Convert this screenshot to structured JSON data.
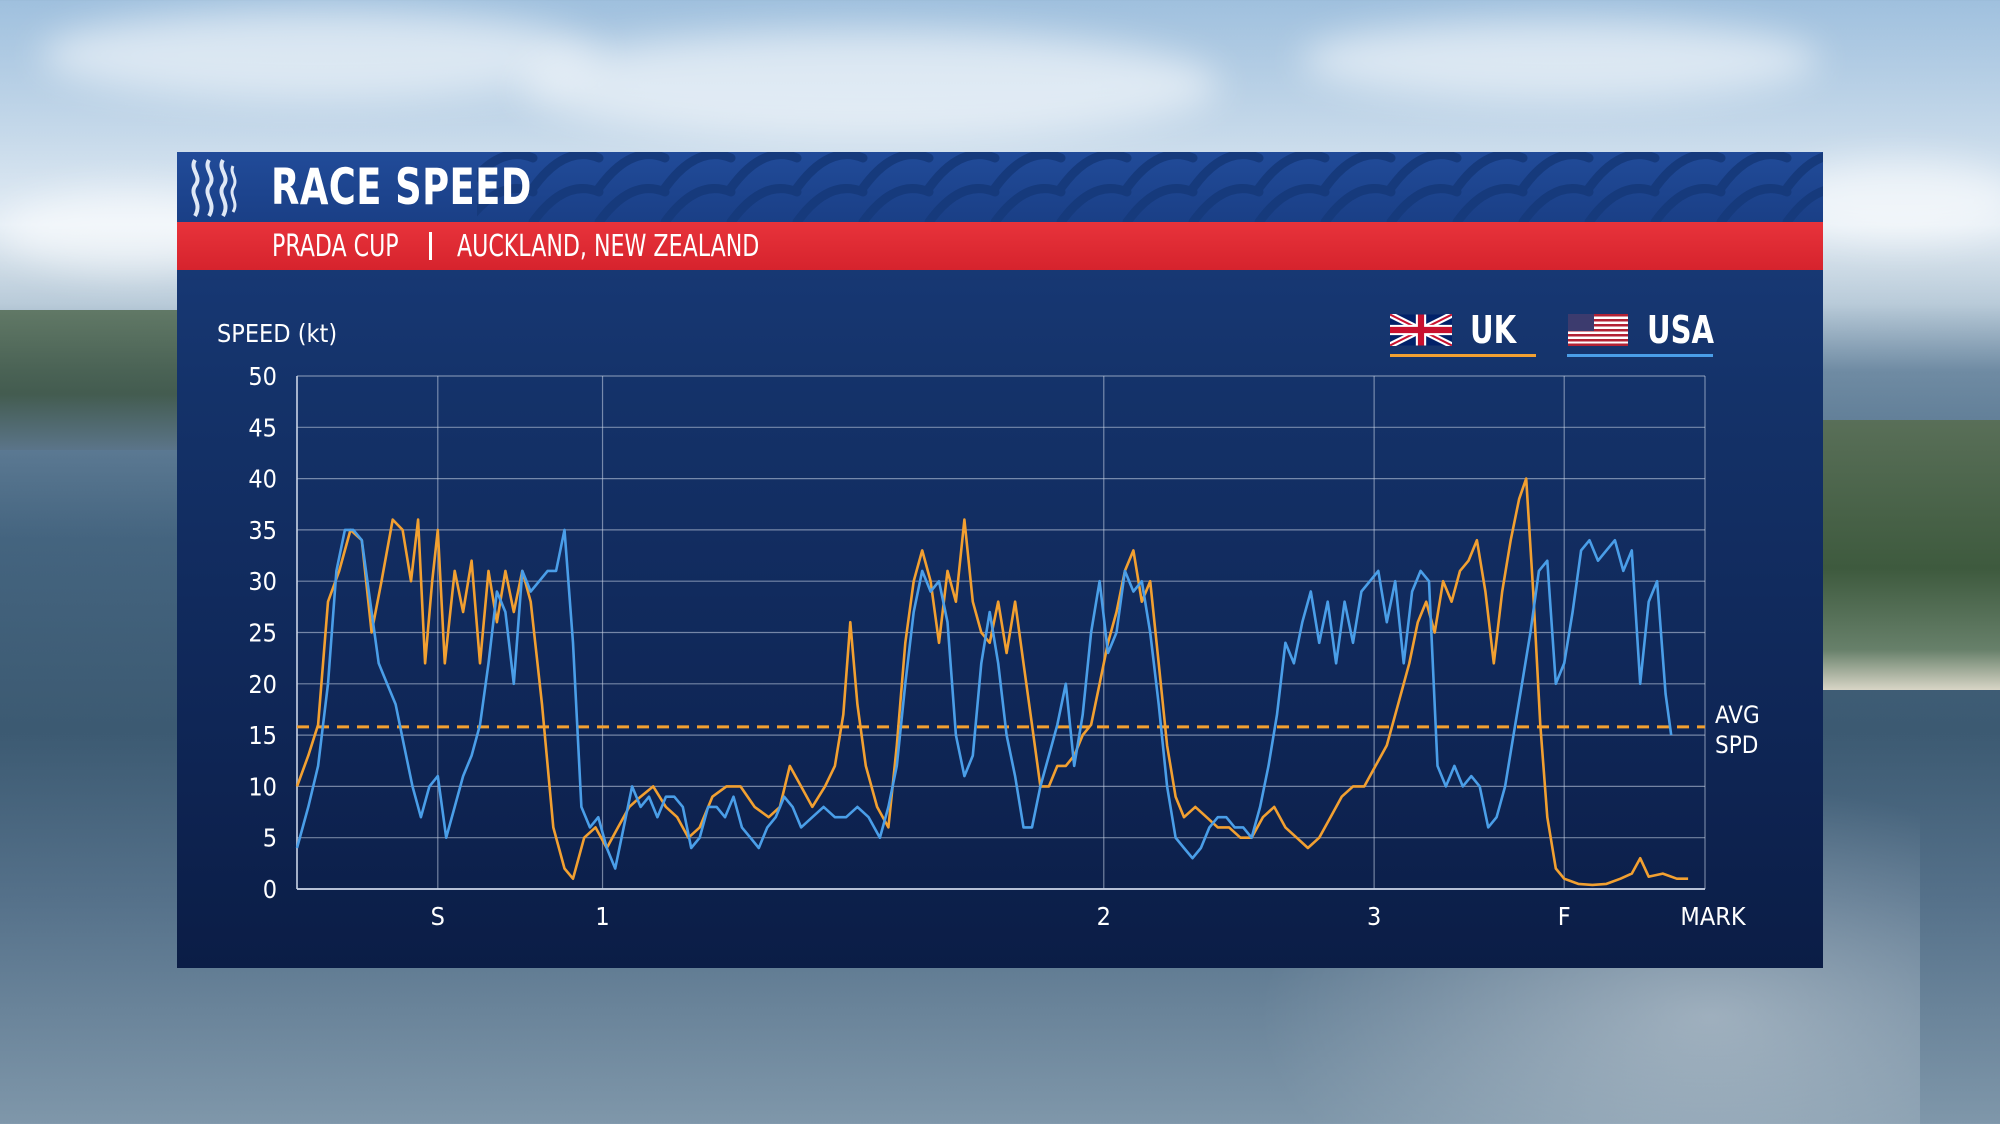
{
  "header": {
    "title": "RACE SPEED",
    "event": "PRADA CUP",
    "location": "AUCKLAND, NEW ZEALAND"
  },
  "legend": [
    {
      "label": "UK",
      "icon": "uk-flag-icon",
      "color": "#f2a031"
    },
    {
      "label": "USA",
      "icon": "usa-flag-icon",
      "color": "#4a9ee8"
    }
  ],
  "colors": {
    "uk": "#f2a031",
    "usa": "#4a9ee8",
    "grid": "#c9d3e6",
    "accent_red": "#e02b33"
  },
  "chart_data": {
    "type": "line",
    "ylabel": "SPEED (kt)",
    "ylim": [
      0,
      50
    ],
    "yticks": [
      0,
      5,
      10,
      15,
      20,
      25,
      30,
      35,
      40,
      45,
      50
    ],
    "xlabel": "MARK",
    "xlim": [
      0,
      100
    ],
    "marks": [
      {
        "label": "S",
        "x": 10
      },
      {
        "label": "1",
        "x": 21.7
      },
      {
        "label": "2",
        "x": 57.3
      },
      {
        "label": "3",
        "x": 76.5
      },
      {
        "label": "F",
        "x": 90
      },
      {
        "label": "",
        "x": 100
      }
    ],
    "avg_line": {
      "label_line1": "AVG",
      "label_line2": "SPD",
      "value": 15.8
    },
    "grid": true,
    "series": [
      {
        "name": "UK",
        "points": [
          [
            0,
            10
          ],
          [
            0.8,
            13
          ],
          [
            1.5,
            16
          ],
          [
            2.2,
            28
          ],
          [
            3,
            31
          ],
          [
            3.8,
            35
          ],
          [
            4.6,
            34
          ],
          [
            5.3,
            25
          ],
          [
            6,
            30
          ],
          [
            6.8,
            36
          ],
          [
            7.5,
            35
          ],
          [
            8.1,
            30
          ],
          [
            8.6,
            36
          ],
          [
            9.1,
            22
          ],
          [
            9.6,
            30
          ],
          [
            10,
            35
          ],
          [
            10.5,
            22
          ],
          [
            11.2,
            31
          ],
          [
            11.8,
            27
          ],
          [
            12.4,
            32
          ],
          [
            13,
            22
          ],
          [
            13.6,
            31
          ],
          [
            14.2,
            26
          ],
          [
            14.8,
            31
          ],
          [
            15.4,
            27
          ],
          [
            16,
            31
          ],
          [
            16.6,
            28
          ],
          [
            17.4,
            18
          ],
          [
            18.2,
            6
          ],
          [
            19,
            2
          ],
          [
            19.6,
            1
          ],
          [
            20.4,
            5
          ],
          [
            21.2,
            6
          ],
          [
            22,
            4
          ],
          [
            22.8,
            6
          ],
          [
            23.6,
            8
          ],
          [
            24.4,
            9
          ],
          [
            25.3,
            10
          ],
          [
            26.2,
            8
          ],
          [
            27,
            7
          ],
          [
            27.8,
            5
          ],
          [
            28.6,
            6
          ],
          [
            29.5,
            9
          ],
          [
            30.5,
            10
          ],
          [
            31.5,
            10
          ],
          [
            32.5,
            8
          ],
          [
            33.5,
            7
          ],
          [
            34.3,
            8
          ],
          [
            35,
            12
          ],
          [
            35.8,
            10
          ],
          [
            36.6,
            8
          ],
          [
            37.5,
            10
          ],
          [
            38.2,
            12
          ],
          [
            38.8,
            17
          ],
          [
            39.3,
            26
          ],
          [
            39.8,
            18
          ],
          [
            40.4,
            12
          ],
          [
            41.2,
            8
          ],
          [
            42,
            6
          ],
          [
            42.6,
            14
          ],
          [
            43.2,
            24
          ],
          [
            43.8,
            30
          ],
          [
            44.4,
            33
          ],
          [
            45,
            30
          ],
          [
            45.6,
            24
          ],
          [
            46.2,
            31
          ],
          [
            46.8,
            28
          ],
          [
            47.4,
            36
          ],
          [
            48,
            28
          ],
          [
            48.6,
            25
          ],
          [
            49.2,
            24
          ],
          [
            49.8,
            28
          ],
          [
            50.4,
            23
          ],
          [
            51,
            28
          ],
          [
            51.6,
            22
          ],
          [
            52.2,
            16
          ],
          [
            52.8,
            10
          ],
          [
            53.4,
            10
          ],
          [
            54,
            12
          ],
          [
            54.6,
            12
          ],
          [
            55.2,
            13
          ],
          [
            55.8,
            15
          ],
          [
            56.4,
            16
          ],
          [
            57,
            20
          ],
          [
            57.6,
            24
          ],
          [
            58.2,
            27
          ],
          [
            58.8,
            31
          ],
          [
            59.4,
            33
          ],
          [
            60,
            28
          ],
          [
            60.6,
            30
          ],
          [
            61.2,
            22
          ],
          [
            61.8,
            14
          ],
          [
            62.4,
            9
          ],
          [
            63,
            7
          ],
          [
            63.8,
            8
          ],
          [
            64.6,
            7
          ],
          [
            65.4,
            6
          ],
          [
            66.2,
            6
          ],
          [
            67,
            5
          ],
          [
            67.8,
            5
          ],
          [
            68.6,
            7
          ],
          [
            69.4,
            8
          ],
          [
            70.2,
            6
          ],
          [
            71,
            5
          ],
          [
            71.8,
            4
          ],
          [
            72.6,
            5
          ],
          [
            73.4,
            7
          ],
          [
            74.2,
            9
          ],
          [
            75,
            10
          ],
          [
            75.8,
            10
          ],
          [
            76.6,
            12
          ],
          [
            77.4,
            14
          ],
          [
            78.2,
            18
          ],
          [
            79,
            22
          ],
          [
            79.6,
            26
          ],
          [
            80.2,
            28
          ],
          [
            80.8,
            25
          ],
          [
            81.4,
            30
          ],
          [
            82,
            28
          ],
          [
            82.6,
            31
          ],
          [
            83.2,
            32
          ],
          [
            83.8,
            34
          ],
          [
            84.4,
            29
          ],
          [
            85,
            22
          ],
          [
            85.6,
            29
          ],
          [
            86.2,
            34
          ],
          [
            86.8,
            38
          ],
          [
            87.3,
            40
          ],
          [
            87.8,
            29
          ],
          [
            88.3,
            16
          ],
          [
            88.8,
            7
          ],
          [
            89.4,
            2
          ],
          [
            90,
            1
          ],
          [
            91,
            0.5
          ],
          [
            92,
            0.4
          ],
          [
            93,
            0.5
          ],
          [
            94,
            1
          ],
          [
            94.8,
            1.5
          ],
          [
            95.4,
            3
          ],
          [
            96,
            1.2
          ],
          [
            97,
            1.5
          ],
          [
            98,
            1
          ],
          [
            98.8,
            1
          ]
        ]
      },
      {
        "name": "USA",
        "points": [
          [
            0,
            4
          ],
          [
            0.8,
            8
          ],
          [
            1.5,
            12
          ],
          [
            2.2,
            20
          ],
          [
            2.8,
            31
          ],
          [
            3.4,
            35
          ],
          [
            4,
            35
          ],
          [
            4.6,
            34
          ],
          [
            5.2,
            28
          ],
          [
            5.8,
            22
          ],
          [
            6.4,
            20
          ],
          [
            7,
            18
          ],
          [
            7.6,
            14
          ],
          [
            8.2,
            10
          ],
          [
            8.8,
            7
          ],
          [
            9.4,
            10
          ],
          [
            10,
            11
          ],
          [
            10.6,
            5
          ],
          [
            11.2,
            8
          ],
          [
            11.8,
            11
          ],
          [
            12.4,
            13
          ],
          [
            13,
            16
          ],
          [
            13.6,
            22
          ],
          [
            14.2,
            29
          ],
          [
            14.8,
            27
          ],
          [
            15.4,
            20
          ],
          [
            16,
            31
          ],
          [
            16.6,
            29
          ],
          [
            17.2,
            30
          ],
          [
            17.8,
            31
          ],
          [
            18.4,
            31
          ],
          [
            19,
            35
          ],
          [
            19.6,
            24
          ],
          [
            20.2,
            8
          ],
          [
            20.8,
            6
          ],
          [
            21.4,
            7
          ],
          [
            22,
            4
          ],
          [
            22.6,
            2
          ],
          [
            23.2,
            6
          ],
          [
            23.8,
            10
          ],
          [
            24.4,
            8
          ],
          [
            25,
            9
          ],
          [
            25.6,
            7
          ],
          [
            26.2,
            9
          ],
          [
            26.8,
            9
          ],
          [
            27.4,
            8
          ],
          [
            28,
            4
          ],
          [
            28.6,
            5
          ],
          [
            29.2,
            8
          ],
          [
            29.8,
            8
          ],
          [
            30.4,
            7
          ],
          [
            31,
            9
          ],
          [
            31.6,
            6
          ],
          [
            32.2,
            5
          ],
          [
            32.8,
            4
          ],
          [
            33.4,
            6
          ],
          [
            34,
            7
          ],
          [
            34.6,
            9
          ],
          [
            35.2,
            8
          ],
          [
            35.8,
            6
          ],
          [
            36.6,
            7
          ],
          [
            37.4,
            8
          ],
          [
            38.2,
            7
          ],
          [
            39,
            7
          ],
          [
            39.8,
            8
          ],
          [
            40.6,
            7
          ],
          [
            41.4,
            5
          ],
          [
            42,
            8
          ],
          [
            42.6,
            12
          ],
          [
            43.2,
            20
          ],
          [
            43.8,
            27
          ],
          [
            44.4,
            31
          ],
          [
            45,
            29
          ],
          [
            45.6,
            30
          ],
          [
            46.2,
            26
          ],
          [
            46.8,
            15
          ],
          [
            47.4,
            11
          ],
          [
            48,
            13
          ],
          [
            48.6,
            22
          ],
          [
            49.2,
            27
          ],
          [
            49.8,
            22
          ],
          [
            50.4,
            15
          ],
          [
            51,
            11
          ],
          [
            51.6,
            6
          ],
          [
            52.2,
            6
          ],
          [
            52.8,
            10
          ],
          [
            53.4,
            13
          ],
          [
            54,
            16
          ],
          [
            54.6,
            20
          ],
          [
            55.2,
            12
          ],
          [
            55.8,
            17
          ],
          [
            56.4,
            25
          ],
          [
            57,
            30
          ],
          [
            57.6,
            23
          ],
          [
            58.2,
            25
          ],
          [
            58.8,
            31
          ],
          [
            59.4,
            29
          ],
          [
            60,
            30
          ],
          [
            60.6,
            25
          ],
          [
            61.2,
            18
          ],
          [
            61.8,
            10
          ],
          [
            62.4,
            5
          ],
          [
            63,
            4
          ],
          [
            63.6,
            3
          ],
          [
            64.2,
            4
          ],
          [
            64.8,
            6
          ],
          [
            65.4,
            7
          ],
          [
            66,
            7
          ],
          [
            66.6,
            6
          ],
          [
            67.2,
            6
          ],
          [
            67.8,
            5
          ],
          [
            68.4,
            8
          ],
          [
            69,
            12
          ],
          [
            69.6,
            17
          ],
          [
            70.2,
            24
          ],
          [
            70.8,
            22
          ],
          [
            71.4,
            26
          ],
          [
            72,
            29
          ],
          [
            72.6,
            24
          ],
          [
            73.2,
            28
          ],
          [
            73.8,
            22
          ],
          [
            74.4,
            28
          ],
          [
            75,
            24
          ],
          [
            75.6,
            29
          ],
          [
            76.2,
            30
          ],
          [
            76.8,
            31
          ],
          [
            77.4,
            26
          ],
          [
            78,
            30
          ],
          [
            78.6,
            22
          ],
          [
            79.2,
            29
          ],
          [
            79.8,
            31
          ],
          [
            80.4,
            30
          ],
          [
            81,
            12
          ],
          [
            81.6,
            10
          ],
          [
            82.2,
            12
          ],
          [
            82.8,
            10
          ],
          [
            83.4,
            11
          ],
          [
            84,
            10
          ],
          [
            84.6,
            6
          ],
          [
            85.2,
            7
          ],
          [
            85.8,
            10
          ],
          [
            86.4,
            15
          ],
          [
            87,
            20
          ],
          [
            87.6,
            25
          ],
          [
            88.2,
            31
          ],
          [
            88.8,
            32
          ],
          [
            89.4,
            20
          ],
          [
            90,
            22
          ],
          [
            90.6,
            27
          ],
          [
            91.2,
            33
          ],
          [
            91.8,
            34
          ],
          [
            92.4,
            32
          ],
          [
            93,
            33
          ],
          [
            93.6,
            34
          ],
          [
            94.2,
            31
          ],
          [
            94.8,
            33
          ],
          [
            95.4,
            20
          ],
          [
            96,
            28
          ],
          [
            96.6,
            30
          ],
          [
            97.2,
            19
          ],
          [
            97.6,
            15
          ]
        ]
      }
    ]
  }
}
